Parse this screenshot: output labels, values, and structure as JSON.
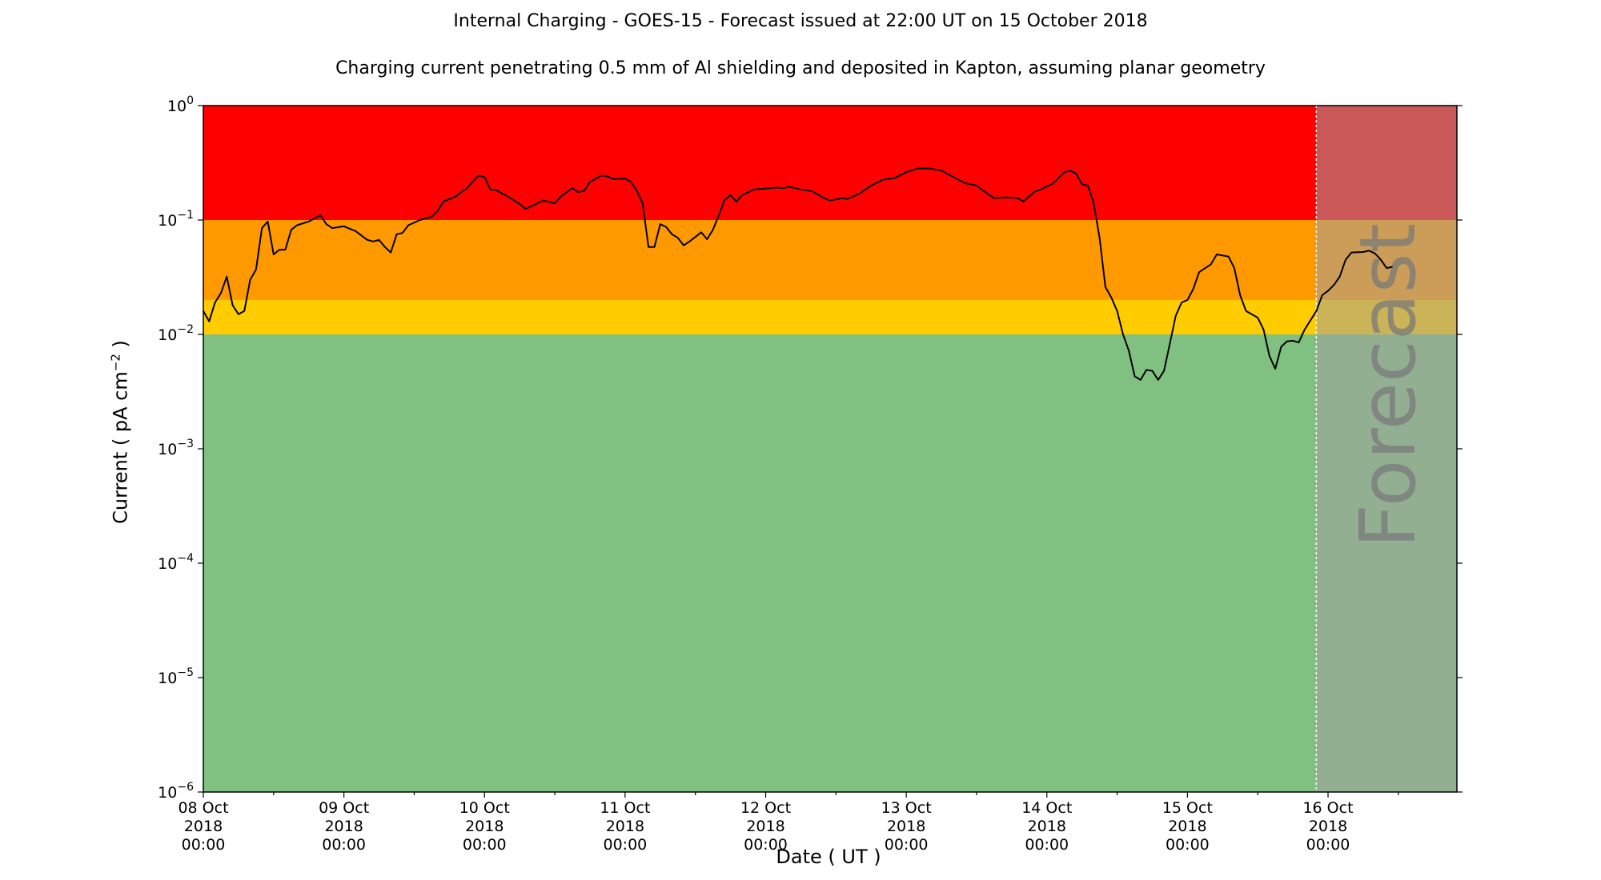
{
  "chart_data": {
    "type": "line",
    "title": "Internal Charging - GOES-15 - Forecast issued at 22:00 UT on 15 October 2018",
    "subtitle": "Charging current penetrating 0.5 mm of Al shielding and deposited in Kapton, assuming planar geometry",
    "xlabel": "Date ( UT )",
    "ylabel": "Current ( pA cm",
    "ylabel_exp": "−2",
    "ylabel_end": " )",
    "y_scale": "log",
    "ylim": [
      1e-06,
      1
    ],
    "xlim": [
      "2018-10-08T00:00",
      "2018-10-16T22:00"
    ],
    "forecast_start": "2018-10-15T22:00",
    "forecast_label": "Forecast",
    "x_ticks": [
      {
        "date": "2018-10-08T00:00",
        "line1": "08 Oct",
        "line2": "2018",
        "line3": "00:00"
      },
      {
        "date": "2018-10-09T00:00",
        "line1": "09 Oct",
        "line2": "2018",
        "line3": "00:00"
      },
      {
        "date": "2018-10-10T00:00",
        "line1": "10 Oct",
        "line2": "2018",
        "line3": "00:00"
      },
      {
        "date": "2018-10-11T00:00",
        "line1": "11 Oct",
        "line2": "2018",
        "line3": "00:00"
      },
      {
        "date": "2018-10-12T00:00",
        "line1": "12 Oct",
        "line2": "2018",
        "line3": "00:00"
      },
      {
        "date": "2018-10-13T00:00",
        "line1": "13 Oct",
        "line2": "2018",
        "line3": "00:00"
      },
      {
        "date": "2018-10-14T00:00",
        "line1": "14 Oct",
        "line2": "2018",
        "line3": "00:00"
      },
      {
        "date": "2018-10-15T00:00",
        "line1": "15 Oct",
        "line2": "2018",
        "line3": "00:00"
      },
      {
        "date": "2018-10-16T00:00",
        "line1": "16 Oct",
        "line2": "2018",
        "line3": "00:00"
      }
    ],
    "y_ticks": [
      {
        "value": 1,
        "base": "10",
        "exp": "0"
      },
      {
        "value": 0.1,
        "base": "10",
        "exp": "−1"
      },
      {
        "value": 0.01,
        "base": "10",
        "exp": "−2"
      },
      {
        "value": 0.001,
        "base": "10",
        "exp": "−3"
      },
      {
        "value": 0.0001,
        "base": "10",
        "exp": "−4"
      },
      {
        "value": 1e-05,
        "base": "10",
        "exp": "−5"
      },
      {
        "value": 1e-06,
        "base": "10",
        "exp": "−6"
      }
    ],
    "bands": [
      {
        "from": 0.1,
        "to": 1,
        "color": "#ff0000"
      },
      {
        "from": 0.02,
        "to": 0.1,
        "color": "#ff9900"
      },
      {
        "from": 0.01,
        "to": 0.02,
        "color": "#ffcc00"
      },
      {
        "from": 1e-06,
        "to": 0.01,
        "color": "#80c080"
      }
    ],
    "forecast_shade_color": "#a0a0a0",
    "series": [
      {
        "line_color": "#000000",
        "points": [
          [
            "2018-10-08T00:00",
            0.016
          ],
          [
            "2018-10-08T01:00",
            0.013
          ],
          [
            "2018-10-08T02:00",
            0.019
          ],
          [
            "2018-10-08T03:00",
            0.023
          ],
          [
            "2018-10-08T04:00",
            0.032
          ],
          [
            "2018-10-08T05:00",
            0.018
          ],
          [
            "2018-10-08T06:00",
            0.015
          ],
          [
            "2018-10-08T07:00",
            0.016
          ],
          [
            "2018-10-08T08:00",
            0.03
          ],
          [
            "2018-10-08T09:00",
            0.037
          ],
          [
            "2018-10-08T10:00",
            0.085
          ],
          [
            "2018-10-08T11:00",
            0.097
          ],
          [
            "2018-10-08T12:00",
            0.05
          ],
          [
            "2018-10-08T13:00",
            0.055
          ],
          [
            "2018-10-08T14:00",
            0.055
          ],
          [
            "2018-10-08T15:00",
            0.082
          ],
          [
            "2018-10-08T16:00",
            0.09
          ],
          [
            "2018-10-08T18:00",
            0.097
          ],
          [
            "2018-10-08T20:00",
            0.11
          ],
          [
            "2018-10-08T21:00",
            0.092
          ],
          [
            "2018-10-08T22:00",
            0.085
          ],
          [
            "2018-10-09T00:00",
            0.088
          ],
          [
            "2018-10-09T02:00",
            0.08
          ],
          [
            "2018-10-09T04:00",
            0.067
          ],
          [
            "2018-10-09T05:00",
            0.065
          ],
          [
            "2018-10-09T06:00",
            0.067
          ],
          [
            "2018-10-09T07:00",
            0.058
          ],
          [
            "2018-10-09T08:00",
            0.052
          ],
          [
            "2018-10-09T09:00",
            0.075
          ],
          [
            "2018-10-09T10:00",
            0.077
          ],
          [
            "2018-10-09T11:00",
            0.09
          ],
          [
            "2018-10-09T13:00",
            0.1
          ],
          [
            "2018-10-09T15:00",
            0.107
          ],
          [
            "2018-10-09T16:00",
            0.12
          ],
          [
            "2018-10-09T17:00",
            0.145
          ],
          [
            "2018-10-09T19:00",
            0.16
          ],
          [
            "2018-10-09T21:00",
            0.19
          ],
          [
            "2018-10-09T23:00",
            0.245
          ],
          [
            "2018-10-10T00:00",
            0.237
          ],
          [
            "2018-10-10T01:00",
            0.185
          ],
          [
            "2018-10-10T02:00",
            0.182
          ],
          [
            "2018-10-10T04:00",
            0.16
          ],
          [
            "2018-10-10T06:00",
            0.138
          ],
          [
            "2018-10-10T07:00",
            0.125
          ],
          [
            "2018-10-10T08:00",
            0.132
          ],
          [
            "2018-10-10T10:00",
            0.148
          ],
          [
            "2018-10-10T12:00",
            0.14
          ],
          [
            "2018-10-10T13:00",
            0.16
          ],
          [
            "2018-10-10T15:00",
            0.19
          ],
          [
            "2018-10-10T16:00",
            0.175
          ],
          [
            "2018-10-10T17:00",
            0.18
          ],
          [
            "2018-10-10T18:00",
            0.215
          ],
          [
            "2018-10-10T20:00",
            0.245
          ],
          [
            "2018-10-10T21:00",
            0.24
          ],
          [
            "2018-10-10T22:00",
            0.228
          ],
          [
            "2018-10-11T00:00",
            0.23
          ],
          [
            "2018-10-11T01:00",
            0.215
          ],
          [
            "2018-10-11T02:00",
            0.18
          ],
          [
            "2018-10-11T03:00",
            0.14
          ],
          [
            "2018-10-11T04:00",
            0.058
          ],
          [
            "2018-10-11T05:00",
            0.058
          ],
          [
            "2018-10-11T06:00",
            0.092
          ],
          [
            "2018-10-11T07:00",
            0.087
          ],
          [
            "2018-10-11T08:00",
            0.075
          ],
          [
            "2018-10-11T09:00",
            0.07
          ],
          [
            "2018-10-11T10:00",
            0.06
          ],
          [
            "2018-10-11T11:00",
            0.065
          ],
          [
            "2018-10-11T13:00",
            0.078
          ],
          [
            "2018-10-11T14:00",
            0.068
          ],
          [
            "2018-10-11T15:00",
            0.082
          ],
          [
            "2018-10-11T16:00",
            0.11
          ],
          [
            "2018-10-11T17:00",
            0.15
          ],
          [
            "2018-10-11T18:00",
            0.165
          ],
          [
            "2018-10-11T19:00",
            0.145
          ],
          [
            "2018-10-11T20:00",
            0.165
          ],
          [
            "2018-10-11T22:00",
            0.185
          ],
          [
            "2018-10-12T00:00",
            0.188
          ],
          [
            "2018-10-12T02:00",
            0.192
          ],
          [
            "2018-10-12T03:00",
            0.19
          ],
          [
            "2018-10-12T04:00",
            0.195
          ],
          [
            "2018-10-12T06:00",
            0.185
          ],
          [
            "2018-10-12T08:00",
            0.178
          ],
          [
            "2018-10-12T10:00",
            0.155
          ],
          [
            "2018-10-12T11:00",
            0.148
          ],
          [
            "2018-10-12T13:00",
            0.155
          ],
          [
            "2018-10-12T14:00",
            0.153
          ],
          [
            "2018-10-12T16:00",
            0.17
          ],
          [
            "2018-10-12T18:00",
            0.2
          ],
          [
            "2018-10-12T20:00",
            0.225
          ],
          [
            "2018-10-12T22:00",
            0.232
          ],
          [
            "2018-10-13T00:00",
            0.262
          ],
          [
            "2018-10-13T02:00",
            0.282
          ],
          [
            "2018-10-13T04:00",
            0.282
          ],
          [
            "2018-10-13T06:00",
            0.27
          ],
          [
            "2018-10-13T08:00",
            0.238
          ],
          [
            "2018-10-13T10:00",
            0.21
          ],
          [
            "2018-10-13T12:00",
            0.2
          ],
          [
            "2018-10-13T14:00",
            0.168
          ],
          [
            "2018-10-13T15:00",
            0.155
          ],
          [
            "2018-10-13T17:00",
            0.158
          ],
          [
            "2018-10-13T19:00",
            0.155
          ],
          [
            "2018-10-13T20:00",
            0.145
          ],
          [
            "2018-10-13T22:00",
            0.178
          ],
          [
            "2018-10-13T23:00",
            0.185
          ],
          [
            "2018-10-14T01:00",
            0.208
          ],
          [
            "2018-10-14T03:00",
            0.262
          ],
          [
            "2018-10-14T04:00",
            0.27
          ],
          [
            "2018-10-14T05:00",
            0.255
          ],
          [
            "2018-10-14T06:00",
            0.205
          ],
          [
            "2018-10-14T07:00",
            0.2
          ],
          [
            "2018-10-14T08:00",
            0.14
          ],
          [
            "2018-10-14T09:00",
            0.07
          ],
          [
            "2018-10-14T10:00",
            0.026
          ],
          [
            "2018-10-14T11:00",
            0.021
          ],
          [
            "2018-10-14T12:00",
            0.016
          ],
          [
            "2018-10-14T13:00",
            0.01
          ],
          [
            "2018-10-14T14:00",
            0.0072
          ],
          [
            "2018-10-14T15:00",
            0.0043
          ],
          [
            "2018-10-14T16:00",
            0.004
          ],
          [
            "2018-10-14T17:00",
            0.0049
          ],
          [
            "2018-10-14T18:00",
            0.0048
          ],
          [
            "2018-10-14T19:00",
            0.004
          ],
          [
            "2018-10-14T20:00",
            0.0048
          ],
          [
            "2018-10-14T21:00",
            0.0083
          ],
          [
            "2018-10-14T22:00",
            0.0145
          ],
          [
            "2018-10-14T23:00",
            0.019
          ],
          [
            "2018-10-15T00:00",
            0.02
          ],
          [
            "2018-10-15T01:00",
            0.025
          ],
          [
            "2018-10-15T02:00",
            0.035
          ],
          [
            "2018-10-15T04:00",
            0.041
          ],
          [
            "2018-10-15T05:00",
            0.05
          ],
          [
            "2018-10-15T07:00",
            0.048
          ],
          [
            "2018-10-15T08:00",
            0.038
          ],
          [
            "2018-10-15T09:00",
            0.022
          ],
          [
            "2018-10-15T10:00",
            0.016
          ],
          [
            "2018-10-15T12:00",
            0.014
          ],
          [
            "2018-10-15T13:00",
            0.011
          ],
          [
            "2018-10-15T14:00",
            0.0065
          ],
          [
            "2018-10-15T15:00",
            0.005
          ],
          [
            "2018-10-15T16:00",
            0.0078
          ],
          [
            "2018-10-15T17:00",
            0.0087
          ],
          [
            "2018-10-15T18:00",
            0.0088
          ],
          [
            "2018-10-15T19:00",
            0.0085
          ],
          [
            "2018-10-15T20:00",
            0.011
          ],
          [
            "2018-10-15T22:00",
            0.016
          ],
          [
            "2018-10-15T23:00",
            0.022
          ],
          [
            "2018-10-16T00:00",
            0.024
          ],
          [
            "2018-10-16T01:00",
            0.027
          ],
          [
            "2018-10-16T02:00",
            0.032
          ],
          [
            "2018-10-16T03:00",
            0.045
          ],
          [
            "2018-10-16T04:00",
            0.052
          ],
          [
            "2018-10-16T06:00",
            0.0525
          ],
          [
            "2018-10-16T07:00",
            0.054
          ],
          [
            "2018-10-16T08:00",
            0.051
          ],
          [
            "2018-10-16T09:00",
            0.045
          ],
          [
            "2018-10-16T10:00",
            0.038
          ],
          [
            "2018-10-16T11:00",
            0.039
          ]
        ]
      }
    ]
  }
}
